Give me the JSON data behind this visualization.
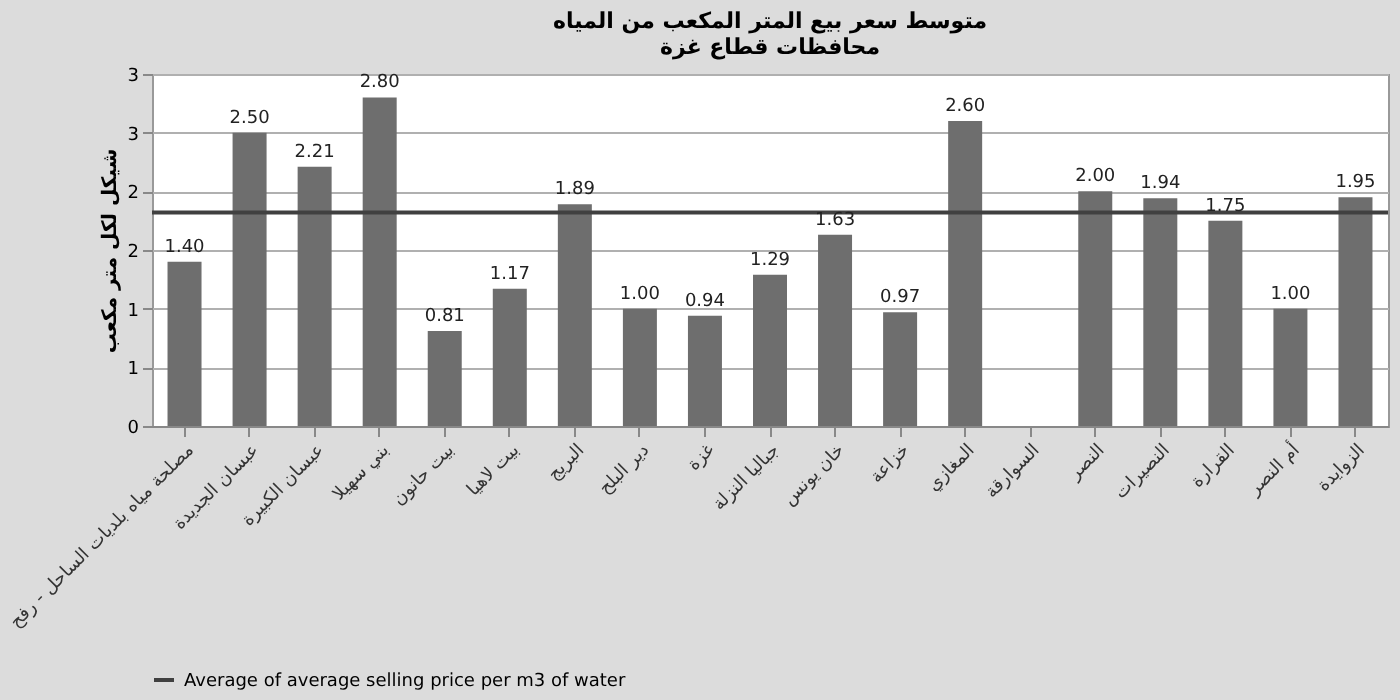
{
  "chart_data": {
    "type": "bar",
    "title": [
      "متوسط سعر بيع المتر المكعب من المياه",
      "محافظات قطاع غزة"
    ],
    "ylabel": "شيكل لكل متر مكعب",
    "categories": [
      "مصلحة مياه بلديات الساحل - رفح",
      "عبسان الجديدة",
      "عبسان الكبيرة",
      "بني سهيلا",
      "بيت حانون",
      "بيت لاهيا",
      "البريج",
      "دير البلح",
      "غزة",
      "جباليا النزلة",
      "خان يونس",
      "خزاعة",
      "المغازي",
      "السوارقة",
      "النصر",
      "النصيرات",
      "القرارة",
      "أم النصر",
      "الزوايدة"
    ],
    "values": [
      1.4,
      2.5,
      2.21,
      2.8,
      0.81,
      1.17,
      1.89,
      1.0,
      0.94,
      1.29,
      1.63,
      0.97,
      2.6,
      null,
      2.0,
      1.94,
      1.75,
      1.0,
      1.95
    ],
    "color": "#6e6e6e",
    "data_labels": true,
    "value_labels": [
      "1.40",
      "2.50",
      "2.21",
      "2.80",
      "0.81",
      "1.17",
      "1.89",
      "1.00",
      "0.94",
      "1.29",
      "1.63",
      "0.97",
      "2.60",
      null,
      "2.00",
      "1.94",
      "1.75",
      "1.00",
      "1.95"
    ],
    "ylim": [
      0,
      3
    ],
    "yticks": [
      0,
      {
        "value": 0.5,
        "label": "1"
      },
      1,
      {
        "value": 1.5,
        "label": "2"
      },
      2,
      {
        "value": 2.5,
        "label": "3"
      },
      3
    ],
    "grid": "y",
    "ref_lines": [
      {
        "axis": "y",
        "value": 1.82,
        "label": "Average of average selling price per m3 of water",
        "color": "#404040"
      }
    ],
    "legend": "bottom"
  }
}
